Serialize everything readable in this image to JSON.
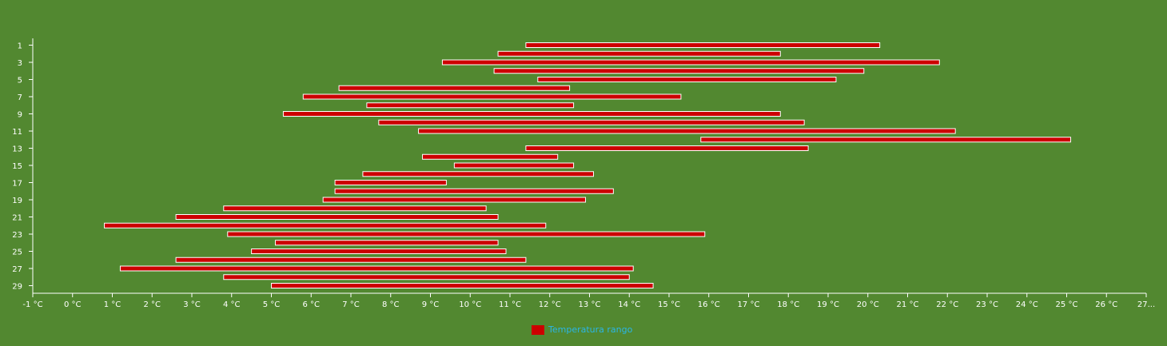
{
  "chart_data": {
    "type": "bar",
    "orientation": "horizontal",
    "title": "",
    "xlabel": "",
    "ylabel": "",
    "x_ticks": [
      "-1 °C",
      "0 °C",
      "1 °C",
      "2 °C",
      "3 °C",
      "4 °C",
      "5 °C",
      "6 °C",
      "7 °C",
      "8 °C",
      "9 °C",
      "10 °C",
      "11 °C",
      "12 °C",
      "13 °C",
      "14 °C",
      "15 °C",
      "16 °C",
      "17 °C",
      "18 °C",
      "19 °C",
      "20 °C",
      "21 °C",
      "22 °C",
      "23 °C",
      "24 °C",
      "25 °C",
      "26 °C",
      "27..."
    ],
    "x_tick_values": [
      -1,
      0,
      1,
      2,
      3,
      4,
      5,
      6,
      7,
      8,
      9,
      10,
      11,
      12,
      13,
      14,
      15,
      16,
      17,
      18,
      19,
      20,
      21,
      22,
      23,
      24,
      25,
      26,
      27
    ],
    "xlim": [
      -1,
      27
    ],
    "y_tick_labels": [
      "1",
      "3",
      "5",
      "7",
      "9",
      "11",
      "13",
      "15",
      "17",
      "19",
      "21",
      "23",
      "25",
      "27",
      "29"
    ],
    "categories": [
      1,
      2,
      3,
      4,
      5,
      6,
      7,
      8,
      9,
      10,
      11,
      12,
      13,
      14,
      15,
      16,
      17,
      18,
      19,
      20,
      21,
      22,
      23,
      24,
      25,
      26,
      27,
      28,
      29
    ],
    "series": [
      {
        "name": "Temperatura rango",
        "color": "#cc0000",
        "ranges": [
          [
            11.4,
            20.3
          ],
          [
            10.7,
            17.8
          ],
          [
            9.3,
            21.8
          ],
          [
            10.6,
            19.9
          ],
          [
            11.7,
            19.2
          ],
          [
            6.7,
            12.5
          ],
          [
            5.8,
            15.3
          ],
          [
            7.4,
            12.6
          ],
          [
            5.3,
            17.8
          ],
          [
            7.7,
            18.4
          ],
          [
            8.7,
            22.2
          ],
          [
            15.8,
            25.1
          ],
          [
            11.4,
            18.5
          ],
          [
            8.8,
            12.2
          ],
          [
            9.6,
            12.6
          ],
          [
            7.3,
            13.1
          ],
          [
            6.6,
            9.4
          ],
          [
            6.6,
            13.6
          ],
          [
            6.3,
            12.9
          ],
          [
            3.8,
            10.4
          ],
          [
            2.6,
            10.7
          ],
          [
            0.8,
            11.9
          ],
          [
            3.9,
            15.9
          ],
          [
            5.1,
            10.7
          ],
          [
            4.5,
            10.9
          ],
          [
            2.6,
            11.4
          ],
          [
            1.2,
            14.1
          ],
          [
            3.8,
            14.0
          ],
          [
            5.0,
            14.6
          ]
        ]
      }
    ],
    "legend_position": "bottom-center",
    "grid": false
  }
}
